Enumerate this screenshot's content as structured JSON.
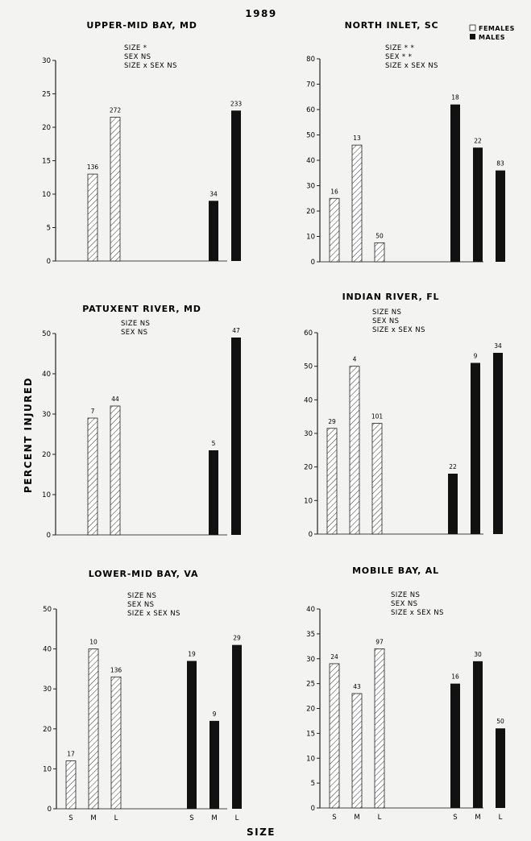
{
  "figure": {
    "year": "1989",
    "ylabel": "PERCENT INJURED",
    "xlabel": "SIZE",
    "legend": {
      "females": "FEMALES",
      "males": "MALES",
      "female_color": "#ffffff",
      "male_color": "#111111"
    },
    "size_labels": [
      "S",
      "M",
      "L"
    ]
  },
  "chart_data": [
    {
      "type": "bar",
      "title": "UPPER-MID BAY, MD",
      "stats": [
        "SIZE  *",
        "SEX  NS",
        "SIZE x SEX  NS"
      ],
      "ylim": [
        0,
        30
      ],
      "yticks": [
        0,
        5,
        10,
        15,
        20,
        25,
        30
      ],
      "show_size_labels": false,
      "series": [
        {
          "name": "FEMALES",
          "values": [
            null,
            13,
            21.5
          ],
          "n": [
            null,
            "136",
            "272"
          ]
        },
        {
          "name": "MALES",
          "values": [
            null,
            9,
            22.5
          ],
          "n": [
            null,
            "34",
            "233"
          ]
        }
      ]
    },
    {
      "type": "bar",
      "title": "NORTH INLET, SC",
      "stats": [
        "SIZE  * *",
        "SEX  * *",
        "SIZE x SEX  NS"
      ],
      "ylim": [
        0,
        80
      ],
      "yticks": [
        0,
        10,
        20,
        30,
        40,
        50,
        60,
        70,
        80
      ],
      "show_size_labels": false,
      "series": [
        {
          "name": "FEMALES",
          "values": [
            25,
            46,
            7.5
          ],
          "n": [
            "16",
            "13",
            "50"
          ]
        },
        {
          "name": "MALES",
          "values": [
            62,
            45,
            36
          ],
          "n": [
            "18",
            "22",
            "83"
          ]
        }
      ]
    },
    {
      "type": "bar",
      "title": "PATUXENT RIVER, MD",
      "stats": [
        "SIZE  NS",
        "SEX  NS"
      ],
      "ylim": [
        0,
        50
      ],
      "yticks": [
        0,
        10,
        20,
        30,
        40,
        50
      ],
      "show_size_labels": false,
      "series": [
        {
          "name": "FEMALES",
          "values": [
            null,
            29,
            32
          ],
          "n": [
            null,
            "7",
            "44"
          ]
        },
        {
          "name": "MALES",
          "values": [
            null,
            21,
            49
          ],
          "n": [
            null,
            "5",
            "47"
          ]
        }
      ]
    },
    {
      "type": "bar",
      "title": "INDIAN RIVER, FL",
      "stats": [
        "SIZE  NS",
        "SEX  NS",
        "SIZE x SEX  NS"
      ],
      "ylim": [
        0,
        60
      ],
      "yticks": [
        0,
        10,
        20,
        30,
        40,
        50,
        60
      ],
      "show_size_labels": false,
      "series": [
        {
          "name": "FEMALES",
          "values": [
            31.5,
            50,
            33
          ],
          "n": [
            "29",
            "4",
            "101"
          ]
        },
        {
          "name": "MALES",
          "values": [
            18,
            51,
            54
          ],
          "n": [
            "22",
            "9",
            "34"
          ]
        }
      ]
    },
    {
      "type": "bar",
      "title": "LOWER-MID BAY, VA",
      "stats": [
        "SIZE  NS",
        "SEX  NS",
        "SIZE x SEX  NS"
      ],
      "ylim": [
        0,
        50
      ],
      "yticks": [
        0,
        10,
        20,
        30,
        40,
        50
      ],
      "show_size_labels": true,
      "series": [
        {
          "name": "FEMALES",
          "values": [
            12,
            40,
            33
          ],
          "n": [
            "17",
            "10",
            "136"
          ]
        },
        {
          "name": "MALES",
          "values": [
            37,
            22,
            41
          ],
          "n": [
            "19",
            "9",
            "29"
          ]
        }
      ]
    },
    {
      "type": "bar",
      "title": "MOBILE BAY, AL",
      "stats": [
        "SIZE  NS",
        "SEX  NS",
        "SIZE x SEX  NS"
      ],
      "ylim": [
        0,
        40
      ],
      "yticks": [
        0,
        5,
        10,
        15,
        20,
        25,
        30,
        35,
        40
      ],
      "show_size_labels": true,
      "series": [
        {
          "name": "FEMALES",
          "values": [
            29,
            23,
            32
          ],
          "n": [
            "24",
            "43",
            "97"
          ]
        },
        {
          "name": "MALES",
          "values": [
            25,
            29.5,
            16
          ],
          "n": [
            "16",
            "30",
            "50"
          ]
        }
      ]
    }
  ]
}
